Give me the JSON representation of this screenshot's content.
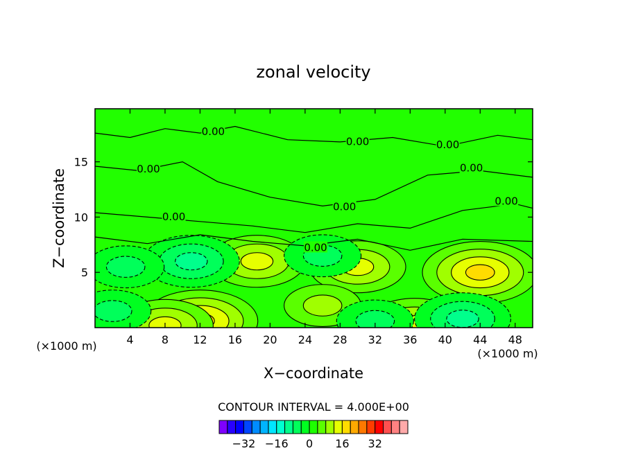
{
  "chart_data": {
    "type": "heatmap",
    "title": "zonal velocity",
    "xlabel": "X−coordinate",
    "ylabel": "Z−coordinate",
    "x_unit_left": "(×1000 m)",
    "x_unit_right": "(×1000 m)",
    "xlim": [
      0,
      50
    ],
    "ylim": [
      0,
      19.8
    ],
    "x_ticks": [
      4,
      8,
      12,
      16,
      20,
      24,
      28,
      32,
      36,
      40,
      44,
      48
    ],
    "y_ticks": [
      5,
      10,
      15
    ],
    "contour_interval_text": "CONTOUR INTERVAL =  4.000E+00",
    "contour_interval": 4,
    "contour_labels": [
      {
        "text": "0.00",
        "x": 13.5,
        "y": 17.8
      },
      {
        "text": "0.00",
        "x": 30.0,
        "y": 16.9
      },
      {
        "text": "0.00",
        "x": 40.3,
        "y": 16.6
      },
      {
        "text": "0.00",
        "x": 6.1,
        "y": 14.4
      },
      {
        "text": "0.00",
        "x": 43.0,
        "y": 14.5
      },
      {
        "text": "0.00",
        "x": 9.0,
        "y": 10.1
      },
      {
        "text": "0.00",
        "x": 28.5,
        "y": 11.0
      },
      {
        "text": "0.00",
        "x": 47.0,
        "y": 11.5
      },
      {
        "text": "0.00",
        "x": 25.2,
        "y": 7.3
      }
    ],
    "colorbar": {
      "colors": [
        "#7f00ff",
        "#2800ff",
        "#0000ff",
        "#0046ff",
        "#008cff",
        "#00b4ff",
        "#00e6ff",
        "#00ffd0",
        "#00ff8c",
        "#00ff5a",
        "#00ff20",
        "#1eff00",
        "#5aff00",
        "#a0ff00",
        "#e6ff00",
        "#ffdc00",
        "#ffaa00",
        "#ff7800",
        "#ff3c00",
        "#ff0000",
        "#ff5050",
        "#ff8282",
        "#ffaaaa"
      ],
      "tick_labels": [
        "−32",
        "−16",
        "0",
        "16",
        "32"
      ]
    },
    "features": [
      {
        "kind": "positive",
        "x": 44,
        "y": 5,
        "peak": 10
      },
      {
        "kind": "positive",
        "x": 30,
        "y": 5.5,
        "peak": 7
      },
      {
        "kind": "positive",
        "x": 18.5,
        "y": 6,
        "peak": 7
      },
      {
        "kind": "positive",
        "x": 12,
        "y": 0.6,
        "peak": 12
      },
      {
        "kind": "positive",
        "x": 36.5,
        "y": 0.3,
        "peak": 8
      },
      {
        "kind": "positive",
        "x": 8,
        "y": 0.2,
        "peak": 6
      },
      {
        "kind": "positive",
        "x": 26,
        "y": 2.0,
        "peak": 5
      },
      {
        "kind": "negative",
        "x": 11,
        "y": 6,
        "peak": -8
      },
      {
        "kind": "negative",
        "x": 26,
        "y": 6.5,
        "peak": -5
      },
      {
        "kind": "negative",
        "x": 3.5,
        "y": 5.5,
        "peak": -4
      },
      {
        "kind": "negative",
        "x": 42,
        "y": 0.8,
        "peak": -8
      },
      {
        "kind": "negative",
        "x": 32,
        "y": 0.6,
        "peak": -5
      },
      {
        "kind": "negative",
        "x": 2,
        "y": 1.5,
        "peak": -3
      }
    ]
  }
}
